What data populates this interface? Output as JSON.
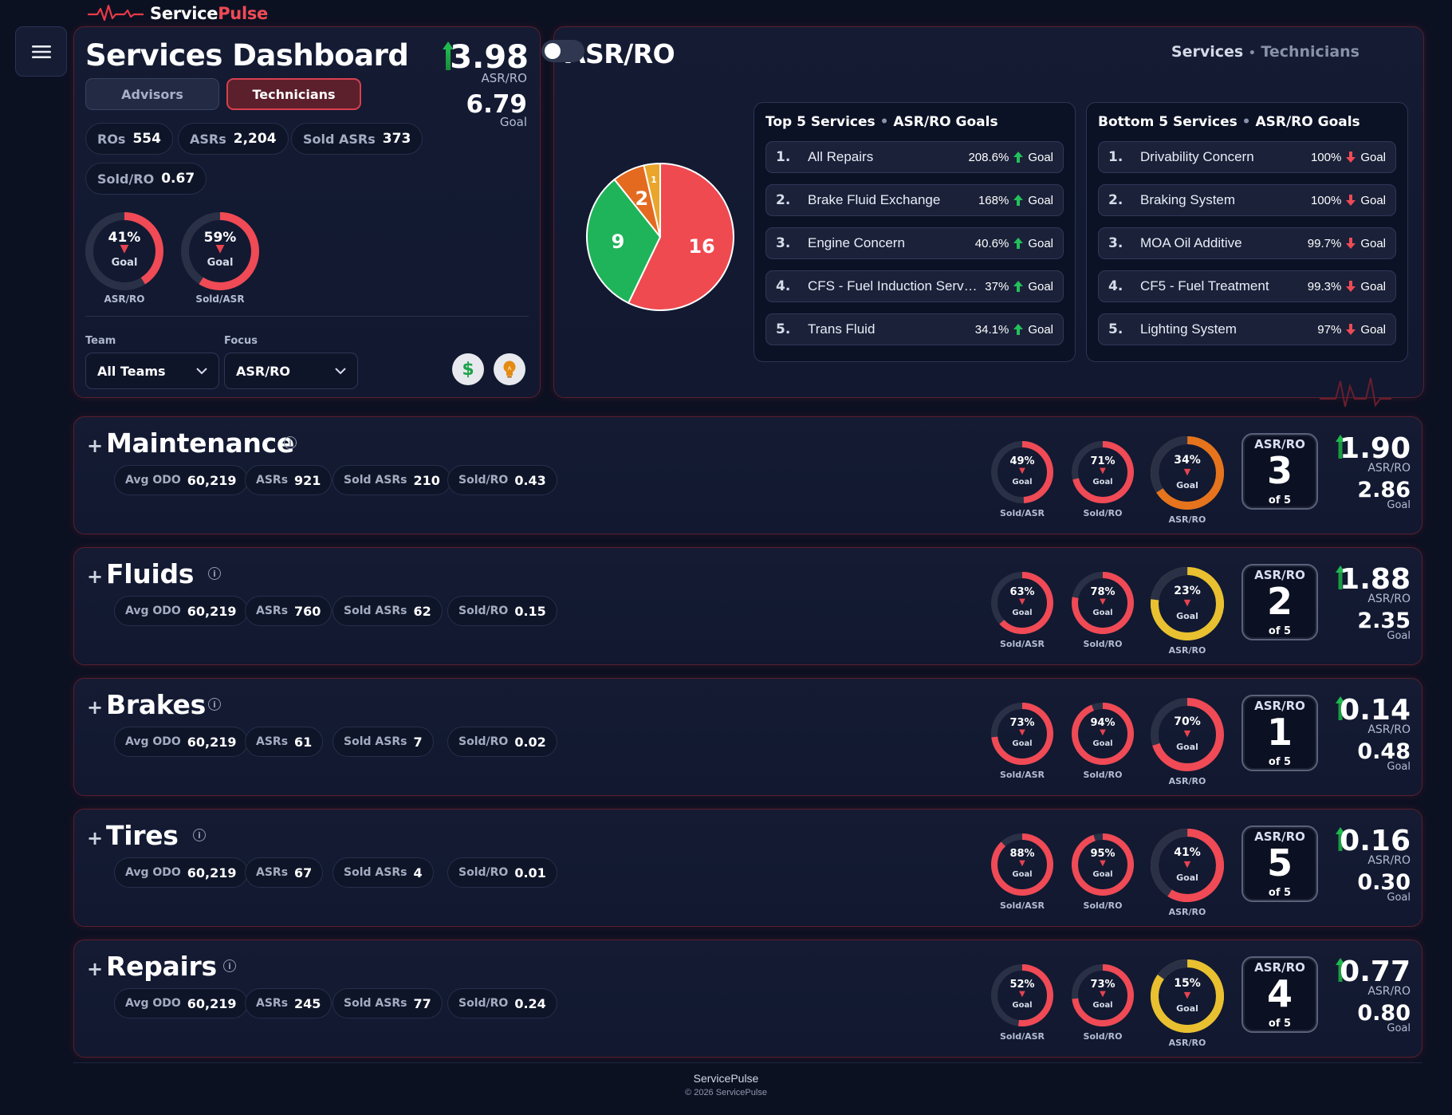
{
  "brand": {
    "part1": "Service",
    "part2": "Pulse"
  },
  "header": {
    "title": "Services Dashboard",
    "tabs": [
      {
        "label": "Advisors",
        "active": false
      },
      {
        "label": "Technicians",
        "active": true
      }
    ],
    "asr_ro_value": "3.98",
    "asr_ro_label": "ASR/RO",
    "goal_value": "6.79",
    "goal_label": "Goal"
  },
  "kpis": [
    {
      "label": "ROs",
      "value": "554"
    },
    {
      "label": "ASRs",
      "value": "2,204"
    },
    {
      "label": "Sold ASRs",
      "value": "373"
    },
    {
      "label": "Sold/RO",
      "value": "0.67"
    }
  ],
  "summary_gauges": [
    {
      "pct": "41%",
      "fraction": 0.41,
      "goal": "Goal",
      "label": "ASR/RO",
      "color": "#ef4a55"
    },
    {
      "pct": "59%",
      "fraction": 0.59,
      "goal": "Goal",
      "label": "Sold/ASR",
      "color": "#ef4a55"
    }
  ],
  "filters": {
    "team_label": "Team",
    "team_value": "All Teams",
    "focus_label": "Focus",
    "focus_value": "ASR/RO"
  },
  "icons": {
    "dollar": "$",
    "bulb": "lightbulb-icon"
  },
  "asr_panel": {
    "title": "ASR/RO",
    "toggle_a": "Services",
    "toggle_sep": "•",
    "toggle_b": "Technicians",
    "pie_labels": [
      "16",
      "9",
      "2",
      "1"
    ]
  },
  "chart_data": {
    "type": "pie",
    "values": [
      16,
      9,
      2,
      1
    ],
    "colors": [
      "#ee4a50",
      "#1fb45a",
      "#e46a20",
      "#e9a52c"
    ]
  },
  "top5": {
    "title": "Top 5 Services",
    "sep": "•",
    "subtitle": "ASR/RO Goals",
    "items": [
      {
        "num": "1.",
        "name": "All Repairs",
        "pct": "208.6%",
        "goal": "Goal"
      },
      {
        "num": "2.",
        "name": "Brake Fluid Exchange",
        "pct": "168%",
        "goal": "Goal"
      },
      {
        "num": "3.",
        "name": "Engine Concern",
        "pct": "40.6%",
        "goal": "Goal"
      },
      {
        "num": "4.",
        "name": "CFS - Fuel Induction Service",
        "pct": "37%",
        "goal": "Goal"
      },
      {
        "num": "5.",
        "name": "Trans Fluid",
        "pct": "34.1%",
        "goal": "Goal"
      }
    ]
  },
  "bottom5": {
    "title": "Bottom 5 Services",
    "sep": "•",
    "subtitle": "ASR/RO Goals",
    "items": [
      {
        "num": "1.",
        "name": "Drivability Concern",
        "pct": "100%",
        "goal": "Goal"
      },
      {
        "num": "2.",
        "name": "Braking System",
        "pct": "100%",
        "goal": "Goal"
      },
      {
        "num": "3.",
        "name": "MOA Oil Additive",
        "pct": "99.7%",
        "goal": "Goal"
      },
      {
        "num": "4.",
        "name": "CF5 - Fuel Treatment",
        "pct": "99.3%",
        "goal": "Goal"
      },
      {
        "num": "5.",
        "name": "Lighting System",
        "pct": "97%",
        "goal": "Goal"
      }
    ]
  },
  "categories": [
    {
      "name": "Maintenance",
      "stats": [
        {
          "label": "Avg ODO",
          "value": "60,219"
        },
        {
          "label": "ASRs",
          "value": "921"
        },
        {
          "label": "Sold ASRs",
          "value": "210"
        },
        {
          "label": "Sold/RO",
          "value": "0.43"
        }
      ],
      "gauges": [
        {
          "pct": "49%",
          "fraction": 0.49,
          "label": "Sold/ASR",
          "color": "#ef4a55"
        },
        {
          "pct": "71%",
          "fraction": 0.71,
          "label": "Sold/RO",
          "color": "#ef4a55"
        },
        {
          "pct": "34%",
          "fraction": 0.34,
          "label": "ASR/RO",
          "color": "#e5741c",
          "ring": "#e5741c"
        }
      ],
      "rank": {
        "label": "ASR/RO",
        "num": "3",
        "of": "of 5"
      },
      "asr_ro": "1.90",
      "asr_ro_label": "ASR/RO",
      "goal": "2.86",
      "goal_label": "Goal"
    },
    {
      "name": "Fluids",
      "stats": [
        {
          "label": "Avg ODO",
          "value": "60,219"
        },
        {
          "label": "ASRs",
          "value": "760"
        },
        {
          "label": "Sold ASRs",
          "value": "62"
        },
        {
          "label": "Sold/RO",
          "value": "0.15"
        }
      ],
      "gauges": [
        {
          "pct": "63%",
          "fraction": 0.63,
          "label": "Sold/ASR",
          "color": "#ef4a55"
        },
        {
          "pct": "78%",
          "fraction": 0.78,
          "label": "Sold/RO",
          "color": "#ef4a55"
        },
        {
          "pct": "23%",
          "fraction": 0.23,
          "label": "ASR/RO",
          "color": "#e8c030",
          "ring": "#e8c030"
        }
      ],
      "rank": {
        "label": "ASR/RO",
        "num": "2",
        "of": "of 5"
      },
      "asr_ro": "1.88",
      "asr_ro_label": "ASR/RO",
      "goal": "2.35",
      "goal_label": "Goal"
    },
    {
      "name": "Brakes",
      "stats": [
        {
          "label": "Avg ODO",
          "value": "60,219"
        },
        {
          "label": "ASRs",
          "value": "61"
        },
        {
          "label": "Sold ASRs",
          "value": "7"
        },
        {
          "label": "Sold/RO",
          "value": "0.02"
        }
      ],
      "gauges": [
        {
          "pct": "73%",
          "fraction": 0.73,
          "label": "Sold/ASR",
          "color": "#ef4a55"
        },
        {
          "pct": "94%",
          "fraction": 0.94,
          "label": "Sold/RO",
          "color": "#ef4a55"
        },
        {
          "pct": "70%",
          "fraction": 0.7,
          "label": "ASR/RO",
          "color": "#ef4a55"
        }
      ],
      "rank": {
        "label": "ASR/RO",
        "num": "1",
        "of": "of 5"
      },
      "asr_ro": "0.14",
      "asr_ro_label": "ASR/RO",
      "goal": "0.48",
      "goal_label": "Goal"
    },
    {
      "name": "Tires",
      "stats": [
        {
          "label": "Avg ODO",
          "value": "60,219"
        },
        {
          "label": "ASRs",
          "value": "67"
        },
        {
          "label": "Sold ASRs",
          "value": "4"
        },
        {
          "label": "Sold/RO",
          "value": "0.01"
        }
      ],
      "gauges": [
        {
          "pct": "88%",
          "fraction": 0.88,
          "label": "Sold/ASR",
          "color": "#ef4a55"
        },
        {
          "pct": "95%",
          "fraction": 0.95,
          "label": "Sold/RO",
          "color": "#ef4a55"
        },
        {
          "pct": "41%",
          "fraction": 0.41,
          "label": "ASR/RO",
          "color": "#ef4a55",
          "ring": "#ef4a55"
        }
      ],
      "rank": {
        "label": "ASR/RO",
        "num": "5",
        "of": "of 5"
      },
      "asr_ro": "0.16",
      "asr_ro_label": "ASR/RO",
      "goal": "0.30",
      "goal_label": "Goal"
    },
    {
      "name": "Repairs",
      "stats": [
        {
          "label": "Avg ODO",
          "value": "60,219"
        },
        {
          "label": "ASRs",
          "value": "245"
        },
        {
          "label": "Sold ASRs",
          "value": "77"
        },
        {
          "label": "Sold/RO",
          "value": "0.24"
        }
      ],
      "gauges": [
        {
          "pct": "52%",
          "fraction": 0.52,
          "label": "Sold/ASR",
          "color": "#ef4a55"
        },
        {
          "pct": "73%",
          "fraction": 0.73,
          "label": "Sold/RO",
          "color": "#ef4a55"
        },
        {
          "pct": "15%",
          "fraction": 0.15,
          "label": "ASR/RO",
          "color": "#e8c030",
          "ring": "#e8c030"
        }
      ],
      "rank": {
        "label": "ASR/RO",
        "num": "4",
        "of": "of 5"
      },
      "asr_ro": "0.77",
      "asr_ro_label": "ASR/RO",
      "goal": "0.80",
      "goal_label": "Goal"
    }
  ],
  "footer": {
    "line1": "ServicePulse",
    "line2": "© 2026 ServicePulse"
  },
  "goal_label": "Goal"
}
